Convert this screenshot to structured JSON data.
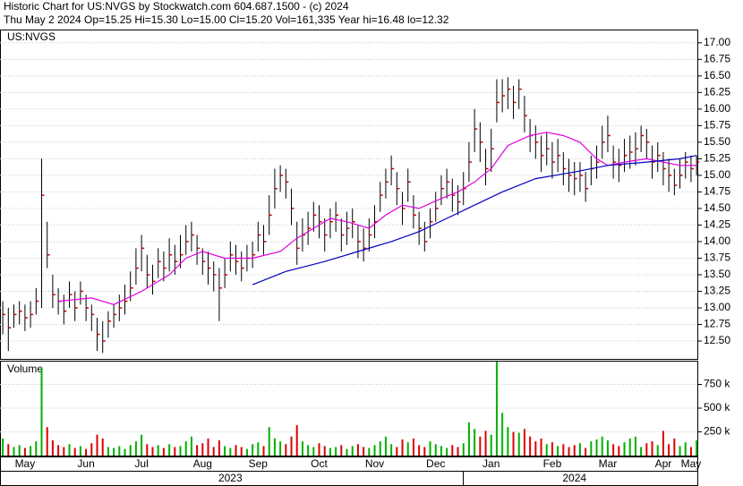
{
  "chart_data": {
    "type": "stock",
    "title": "Historic Chart for US:NVGS by Stockwatch.com 604.687.1500 - (c) 2024",
    "subtitle": "Thu May  2 2024  Op=15.25  Hi=15.30  Lo=15.00  Cl=15.20  Vol=161,335  Year hi=16.48  lo=12.32",
    "symbol_label": "US:NVGS",
    "grid": true,
    "xlim": [
      -0.5,
      125.3
    ],
    "ylim": [
      12.23,
      17.2
    ],
    "yticks": [
      {
        "value": 12.5,
        "label": "12.50"
      },
      {
        "value": 12.75,
        "label": "12.75"
      },
      {
        "value": 13,
        "label": "13.00"
      },
      {
        "value": 13.25,
        "label": "13.25"
      },
      {
        "value": 13.5,
        "label": "13.50"
      },
      {
        "value": 13.75,
        "label": "13.75"
      },
      {
        "value": 14,
        "label": "14.00"
      },
      {
        "value": 14.25,
        "label": "14.25"
      },
      {
        "value": 14.5,
        "label": "14.50"
      },
      {
        "value": 14.75,
        "label": "14.75"
      },
      {
        "value": 15,
        "label": "15.00"
      },
      {
        "value": 15.25,
        "label": "15.25"
      },
      {
        "value": 15.5,
        "label": "15.50"
      },
      {
        "value": 15.75,
        "label": "15.75"
      },
      {
        "value": 16,
        "label": "16.00"
      },
      {
        "value": 16.25,
        "label": "16.25"
      },
      {
        "value": 16.5,
        "label": "16.50"
      },
      {
        "value": 16.75,
        "label": "16.75"
      },
      {
        "value": 17,
        "label": "17.00"
      }
    ],
    "xticks": [
      {
        "value": 4,
        "label": "May"
      },
      {
        "value": 15,
        "label": "Jun"
      },
      {
        "value": 25,
        "label": "Jul"
      },
      {
        "value": 36,
        "label": "Aug"
      },
      {
        "value": 46,
        "label": "Sep"
      },
      {
        "value": 57,
        "label": "Oct"
      },
      {
        "value": 67,
        "label": "Nov"
      },
      {
        "value": 78,
        "label": "Dec"
      },
      {
        "value": 88,
        "label": "Jan"
      },
      {
        "value": 99,
        "label": "Feb"
      },
      {
        "value": 109,
        "label": "Mar"
      },
      {
        "value": 119,
        "label": "Apr"
      },
      {
        "value": 124,
        "label": "May"
      }
    ],
    "year_ticks": [
      {
        "value": 41,
        "label": "2023"
      },
      {
        "value": 103,
        "label": "2024"
      }
    ],
    "bar_color": "#000000",
    "close_color": "#cc0000",
    "high": [
      13.1,
      13.0,
      13.05,
      13.1,
      13.05,
      13.1,
      13.3,
      15.25,
      14.3,
      13.5,
      13.3,
      13.2,
      13.4,
      13.25,
      13.4,
      13.2,
      13.05,
      12.85,
      12.8,
      12.95,
      13.05,
      13.2,
      13.35,
      13.55,
      13.9,
      14.1,
      13.8,
      13.65,
      13.9,
      13.85,
      14.05,
      13.95,
      14.1,
      14.25,
      14.3,
      14.1,
      13.9,
      13.85,
      13.7,
      13.6,
      13.75,
      14.0,
      13.95,
      13.85,
      13.95,
      14.0,
      14.3,
      14.25,
      14.7,
      15.1,
      15.15,
      15.1,
      14.8,
      14.3,
      14.35,
      14.45,
      14.6,
      14.55,
      14.35,
      14.5,
      14.6,
      14.35,
      14.45,
      14.5,
      14.25,
      14.2,
      14.35,
      14.55,
      14.9,
      15.1,
      15.3,
      15.05,
      14.75,
      15.1,
      14.7,
      14.45,
      14.3,
      14.5,
      14.75,
      15.0,
      15.1,
      14.95,
      14.85,
      15.05,
      15.5,
      16.0,
      15.8,
      15.4,
      15.7,
      16.45,
      16.45,
      16.48,
      16.35,
      16.45,
      16.2,
      15.85,
      15.75,
      15.6,
      15.65,
      15.5,
      15.55,
      15.35,
      15.25,
      15.2,
      15.2,
      15.05,
      15.3,
      15.45,
      15.75,
      15.9,
      15.45,
      15.4,
      15.55,
      15.6,
      15.65,
      15.75,
      15.7,
      15.45,
      15.5,
      15.35,
      15.25,
      15.1,
      15.25,
      15.35,
      15.3,
      15.3
    ],
    "low": [
      12.6,
      12.35,
      12.7,
      12.75,
      12.65,
      12.7,
      12.9,
      13.0,
      13.6,
      13.0,
      12.9,
      12.75,
      13.0,
      12.8,
      13.05,
      12.8,
      12.65,
      12.35,
      12.32,
      12.55,
      12.7,
      12.8,
      12.9,
      13.1,
      13.35,
      13.55,
      13.3,
      13.2,
      13.45,
      13.4,
      13.55,
      13.5,
      13.6,
      13.8,
      13.85,
      13.65,
      13.5,
      13.35,
      13.25,
      12.8,
      13.3,
      13.55,
      13.5,
      13.4,
      13.55,
      13.6,
      13.85,
      13.8,
      14.1,
      14.5,
      14.75,
      14.65,
      14.25,
      13.65,
      13.85,
      13.95,
      14.15,
      14.05,
      13.85,
      14.05,
      14.15,
      13.85,
      13.95,
      14.05,
      13.75,
      13.7,
      13.85,
      14.05,
      14.45,
      14.65,
      14.85,
      14.55,
      14.25,
      14.6,
      14.2,
      13.95,
      13.85,
      14.05,
      14.3,
      14.55,
      14.65,
      14.45,
      14.4,
      14.55,
      14.9,
      15.35,
      15.2,
      14.85,
      15.05,
      15.8,
      15.95,
      16.0,
      15.85,
      16.0,
      15.65,
      15.35,
      15.25,
      15.05,
      15.15,
      14.95,
      15.05,
      14.85,
      14.75,
      14.7,
      14.75,
      14.6,
      14.85,
      14.95,
      15.25,
      15.35,
      14.95,
      14.9,
      15.05,
      15.1,
      15.15,
      15.35,
      15.25,
      14.95,
      15.05,
      14.85,
      14.75,
      14.7,
      14.8,
      14.95,
      14.9,
      15.0
    ],
    "close": [
      12.9,
      12.7,
      12.9,
      12.95,
      12.85,
      12.9,
      13.1,
      14.7,
      13.8,
      13.2,
      13.1,
      12.95,
      13.2,
      13.0,
      13.25,
      13.0,
      12.9,
      12.6,
      12.5,
      12.8,
      12.9,
      13.0,
      13.1,
      13.3,
      13.6,
      13.9,
      13.5,
      13.4,
      13.7,
      13.6,
      13.8,
      13.7,
      13.8,
      14.0,
      14.1,
      13.9,
      13.7,
      13.6,
      13.5,
      13.3,
      13.5,
      13.8,
      13.7,
      13.6,
      13.75,
      13.8,
      14.1,
      14.0,
      14.4,
      14.8,
      15.0,
      14.9,
      14.5,
      13.9,
      14.1,
      14.2,
      14.4,
      14.3,
      14.1,
      14.3,
      14.4,
      14.1,
      14.2,
      14.3,
      14.0,
      13.9,
      14.1,
      14.3,
      14.7,
      14.9,
      15.1,
      14.8,
      14.5,
      14.9,
      14.4,
      14.2,
      14.0,
      14.3,
      14.5,
      14.8,
      14.9,
      14.7,
      14.6,
      14.8,
      15.2,
      15.7,
      15.5,
      15.1,
      15.4,
      16.1,
      16.2,
      16.3,
      16.1,
      16.3,
      15.9,
      15.6,
      15.5,
      15.3,
      15.4,
      15.2,
      15.3,
      15.1,
      15.0,
      14.95,
      15.0,
      14.8,
      15.1,
      15.2,
      15.5,
      15.6,
      15.2,
      15.15,
      15.3,
      15.35,
      15.4,
      15.6,
      15.5,
      15.2,
      15.3,
      15.1,
      15.0,
      14.85,
      15.0,
      15.2,
      15.1,
      15.2
    ],
    "lines": [
      {
        "color": "#e000e0",
        "x": [
          10,
          16,
          20,
          25,
          30,
          33,
          36,
          40,
          45,
          50,
          53,
          56,
          59,
          62,
          66,
          69,
          72,
          75,
          79,
          82,
          85,
          88,
          91,
          95,
          98,
          101,
          104,
          107,
          109,
          112,
          116,
          119,
          122,
          125
        ],
        "values": [
          13.1,
          13.15,
          13.05,
          13.25,
          13.5,
          13.75,
          13.85,
          13.75,
          13.75,
          13.85,
          14.05,
          14.2,
          14.35,
          14.3,
          14.2,
          14.4,
          14.55,
          14.5,
          14.65,
          14.75,
          14.9,
          15.1,
          15.45,
          15.6,
          15.65,
          15.6,
          15.5,
          15.25,
          15.15,
          15.2,
          15.25,
          15.2,
          15.15,
          15.15
        ]
      },
      {
        "color": "#0000c0",
        "x": [
          45,
          51,
          58,
          64,
          70,
          75,
          80,
          85,
          90,
          96,
          103,
          109,
          116,
          122,
          125
        ],
        "values": [
          13.35,
          13.55,
          13.7,
          13.85,
          14.0,
          14.15,
          14.35,
          14.55,
          14.75,
          14.95,
          15.05,
          15.15,
          15.2,
          15.25,
          15.3
        ]
      }
    ],
    "volume": {
      "label": "Volume",
      "up_color": "#00b000",
      "down_color": "#dd0000",
      "ylim": [
        0,
        1000000
      ],
      "yticks": [
        {
          "value": 250000,
          "label": "250 k"
        },
        {
          "value": 500000,
          "label": "500 k"
        },
        {
          "value": 750000,
          "label": "750 k"
        }
      ],
      "values": [
        180000,
        120000,
        90000,
        110000,
        80000,
        100000,
        150000,
        920000,
        300000,
        160000,
        110000,
        90000,
        120000,
        80000,
        100000,
        70000,
        130000,
        220000,
        180000,
        90000,
        80000,
        100000,
        70000,
        110000,
        150000,
        220000,
        120000,
        90000,
        110000,
        80000,
        120000,
        90000,
        100000,
        150000,
        200000,
        110000,
        130000,
        180000,
        90000,
        160000,
        100000,
        80000,
        110000,
        90000,
        70000,
        120000,
        140000,
        100000,
        300000,
        180000,
        150000,
        120000,
        200000,
        320000,
        150000,
        110000,
        90000,
        130000,
        100000,
        80000,
        90000,
        110000,
        70000,
        100000,
        120000,
        90000,
        80000,
        110000,
        150000,
        200000,
        120000,
        90000,
        170000,
        140000,
        180000,
        110000,
        90000,
        150000,
        120000,
        100000,
        80000,
        110000,
        90000,
        130000,
        350000,
        280000,
        200000,
        260000,
        220000,
        990000,
        450000,
        300000,
        250000,
        240000,
        280000,
        200000,
        150000,
        180000,
        120000,
        140000,
        100000,
        120000,
        90000,
        110000,
        130000,
        80000,
        150000,
        170000,
        200000,
        160000,
        120000,
        100000,
        140000,
        180000,
        200000,
        90000,
        130000,
        150000,
        110000,
        260000,
        120000,
        180000,
        100000,
        140000,
        90000,
        161335
      ]
    }
  }
}
